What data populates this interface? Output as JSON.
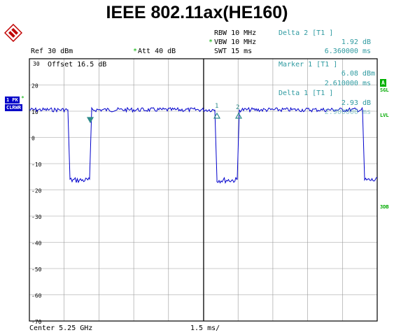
{
  "title": "IEEE 802.11ax(HE160)",
  "header": {
    "rbw": "RBW 10 MHz",
    "vbw_marker": "*",
    "vbw": "VBW 10 MHz",
    "swt": "SWT 15 ms",
    "ref": "Ref  30 dBm",
    "att_marker": "*",
    "att": "Att  40 dB",
    "delta2_title": "Delta 2 [T1 ]",
    "delta2_value": "1.92 dB",
    "delta2_time": "6.360000 ms"
  },
  "overlay": {
    "offset": "Offset  16.5 dB",
    "marker1_title": "Marker 1 [T1 ]",
    "marker1_value": "6.08 dBm",
    "marker1_time": "2.610000 ms",
    "delta1_title": "Delta 1 [T1 ]",
    "delta1_value": "2.93 dB",
    "delta1_time": "2.900000 ms"
  },
  "left_labels": {
    "trace": "1 PK",
    "trace_marker": "*",
    "mode": "CLRWR"
  },
  "right_labels": {
    "a": "A",
    "sgl": "SGL",
    "lvl": "LVL",
    "db3": "3DB"
  },
  "footer": {
    "center": "Center 5.25 GHz",
    "span": "1.5 ms/"
  },
  "y_ticks": [
    "30",
    "20",
    "10",
    "0",
    "-10",
    "-20",
    "-30",
    "-40",
    "-50",
    "-60",
    "-70"
  ],
  "marker_labels": [
    "1",
    "2"
  ],
  "colors": {
    "trace": "#0000cc",
    "marker": "#2e8b8b",
    "grid": "#808080",
    "side_green": "#00b000",
    "side_blue": "#0000c8"
  }
}
